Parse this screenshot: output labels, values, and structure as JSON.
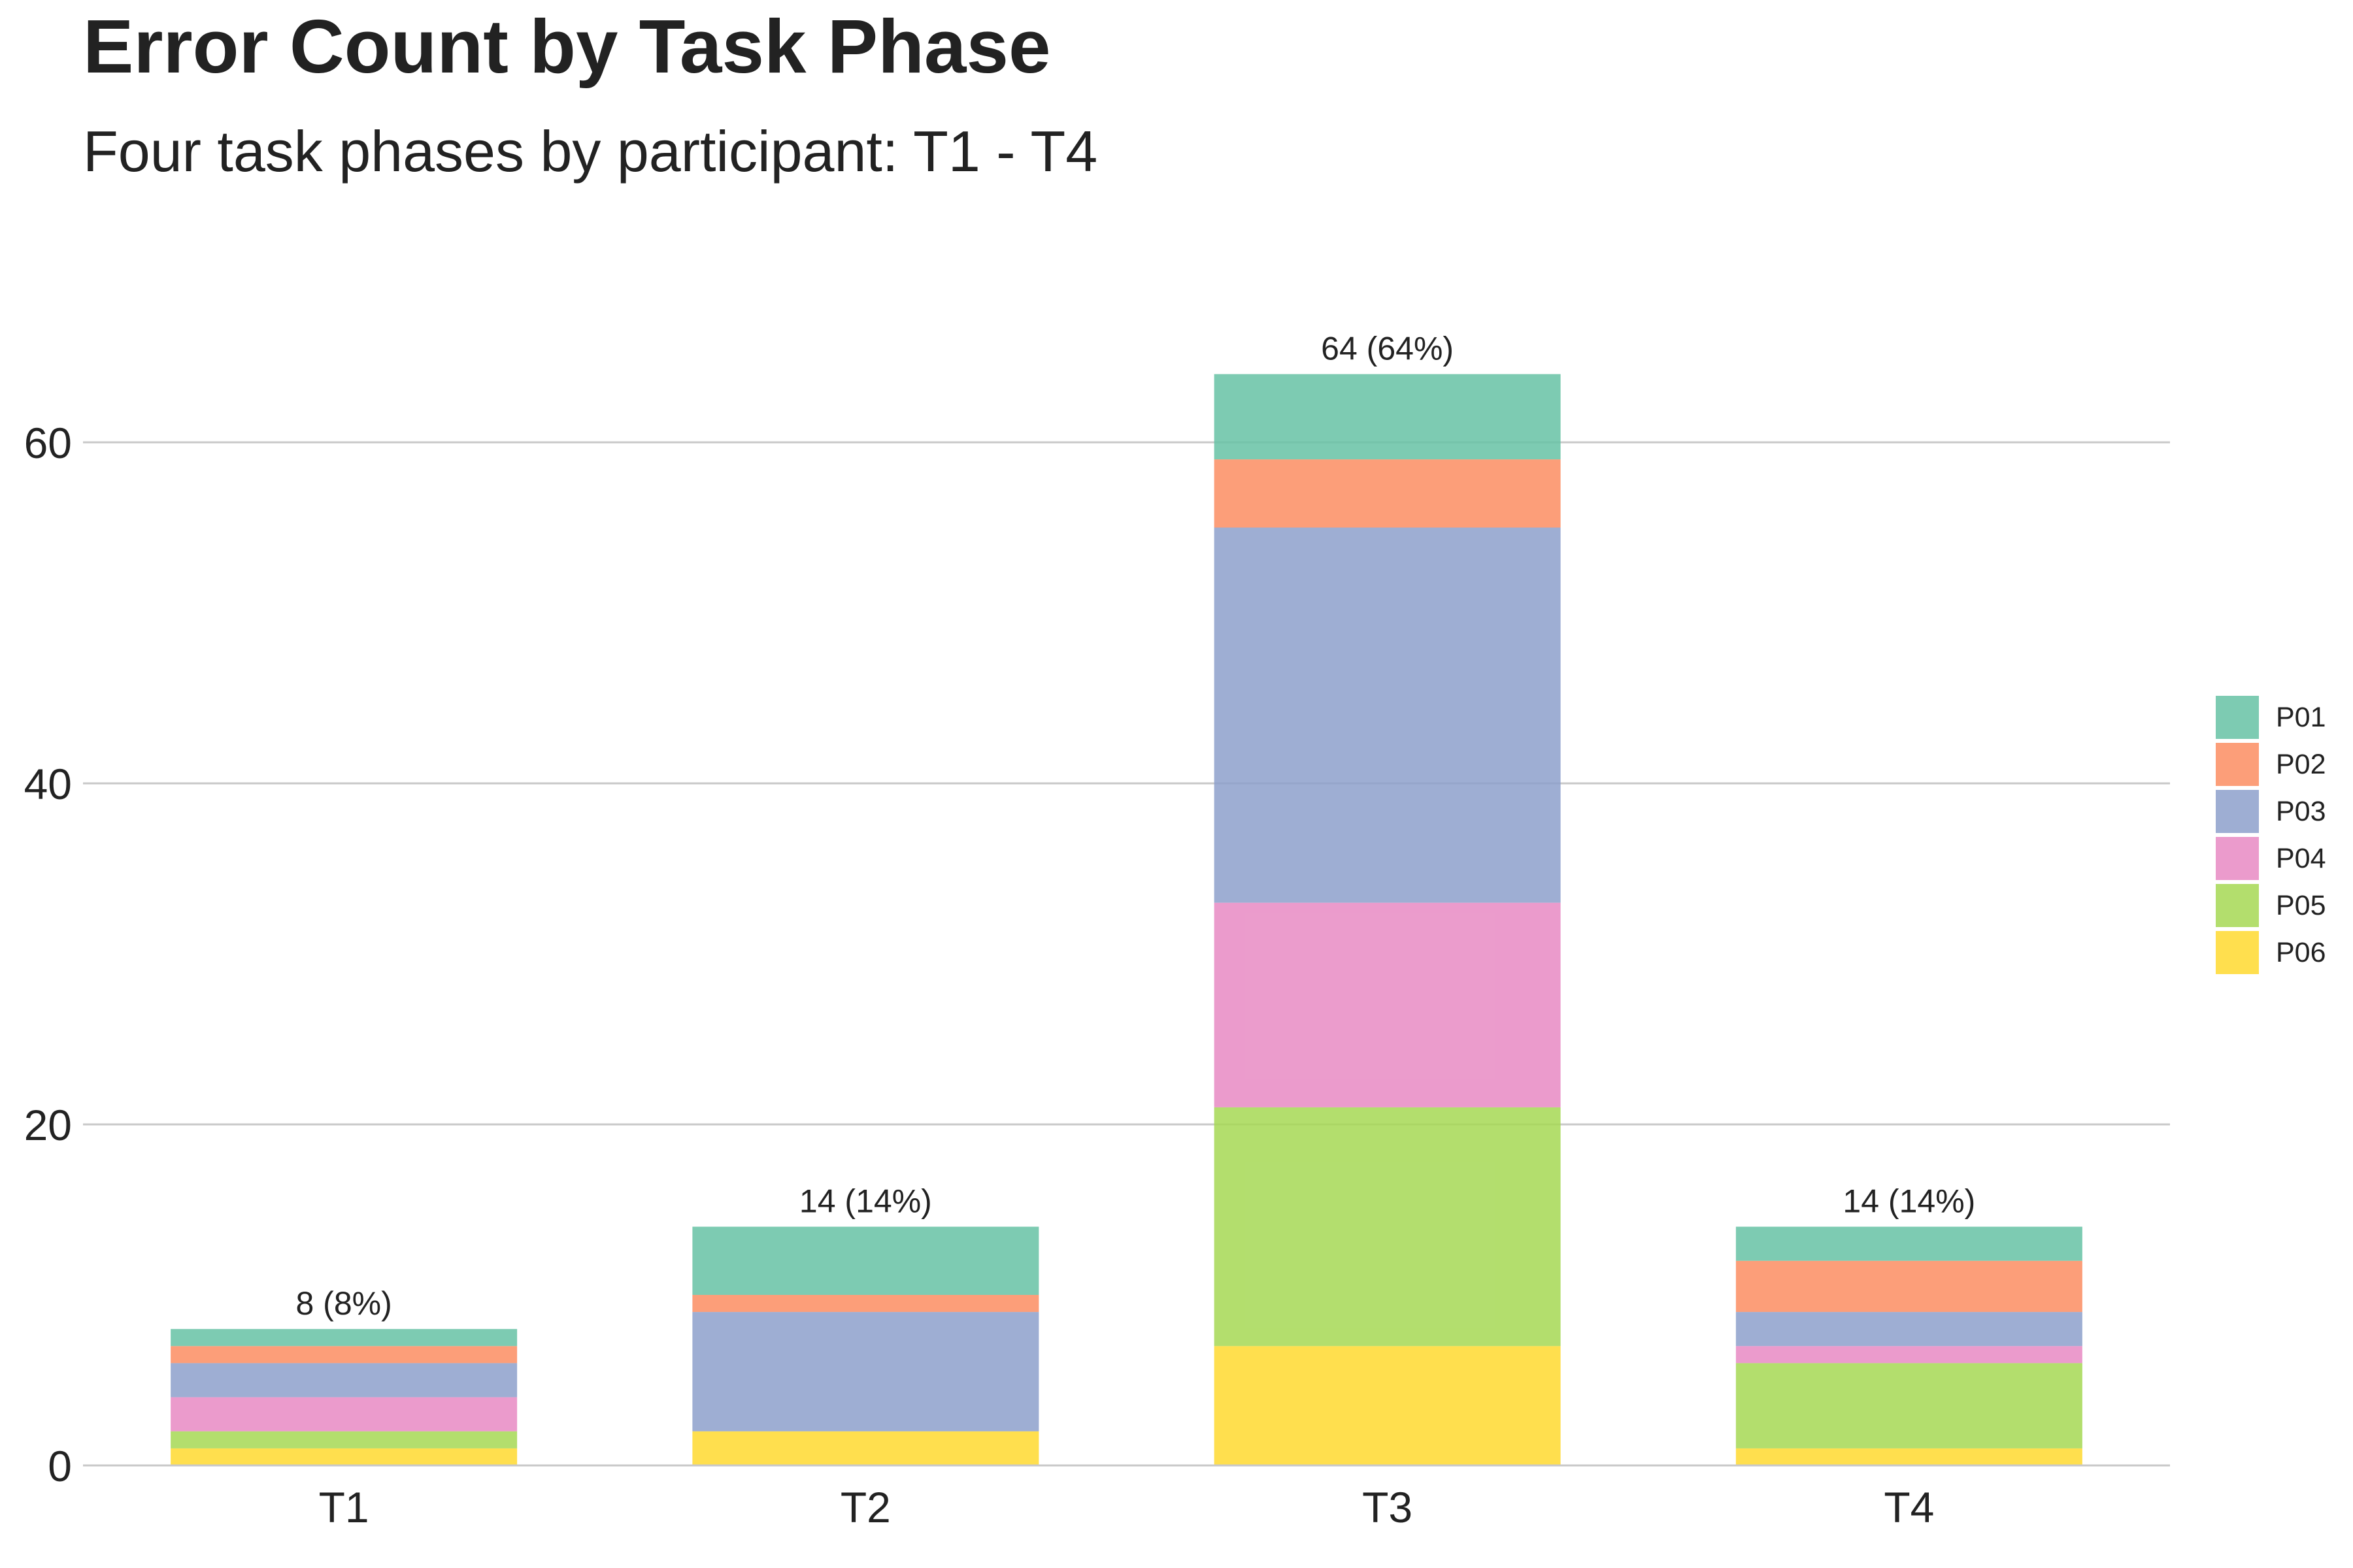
{
  "chart_data": {
    "type": "bar",
    "stacked": true,
    "title": "Error Count by Task Phase",
    "subtitle": "Four task phases by participant: T1 - T4",
    "xlabel": "",
    "ylabel": "",
    "categories": [
      "T1",
      "T2",
      "T3",
      "T4"
    ],
    "series": [
      {
        "name": "P06",
        "color": "#FFD92F",
        "values": [
          1,
          2,
          7,
          1
        ]
      },
      {
        "name": "P05",
        "color": "#A6D854",
        "values": [
          1,
          0,
          14,
          5
        ]
      },
      {
        "name": "P04",
        "color": "#E78AC3",
        "values": [
          2,
          0,
          12,
          1
        ]
      },
      {
        "name": "P03",
        "color": "#8DA0CB",
        "values": [
          2,
          7,
          22,
          2
        ]
      },
      {
        "name": "P02",
        "color": "#FC8D62",
        "values": [
          1,
          1,
          4,
          3
        ]
      },
      {
        "name": "P01",
        "color": "#66C2A5",
        "values": [
          1,
          4,
          5,
          2
        ]
      }
    ],
    "totals": [
      8,
      14,
      64,
      14
    ],
    "total_labels": [
      "8 (8%)",
      "14 (14%)",
      "64 (64%)",
      "14 (14%)"
    ],
    "ylim": [
      0,
      66
    ],
    "yticks": [
      0,
      20,
      40,
      60
    ],
    "grid": true,
    "legend": {
      "position": "right",
      "entries": [
        "P01",
        "P02",
        "P03",
        "P04",
        "P05",
        "P06"
      ]
    }
  }
}
